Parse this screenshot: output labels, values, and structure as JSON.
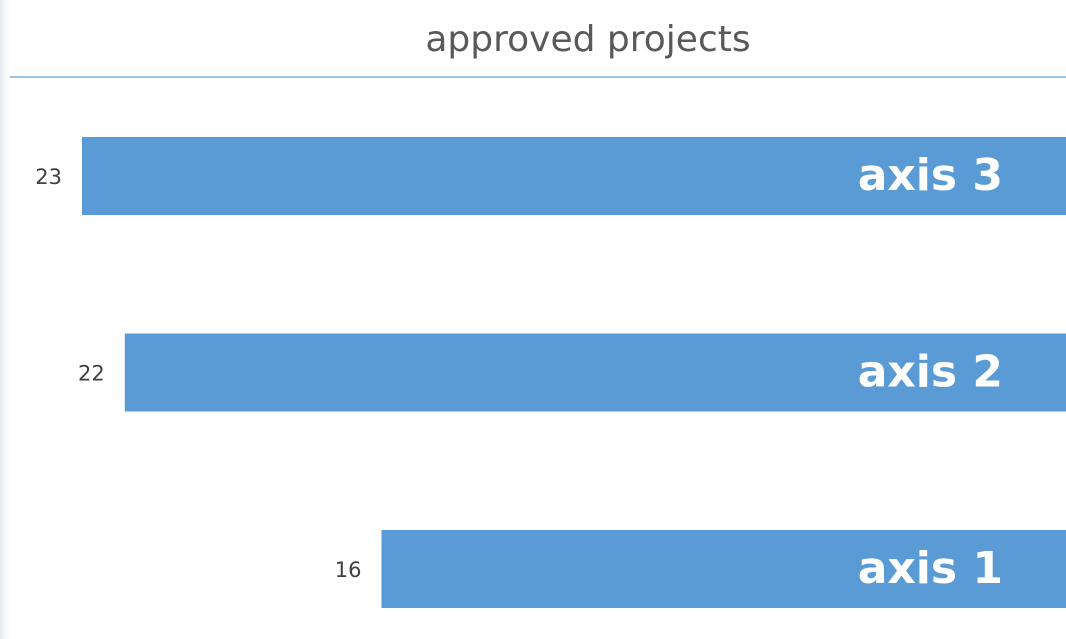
{
  "chart_data": {
    "type": "bar",
    "orientation": "horizontal",
    "title": "approved projects",
    "categories": [
      "axis 3",
      "axis 2",
      "axis 1"
    ],
    "values": [
      23,
      22,
      16
    ],
    "color": "#5b9bd5"
  }
}
